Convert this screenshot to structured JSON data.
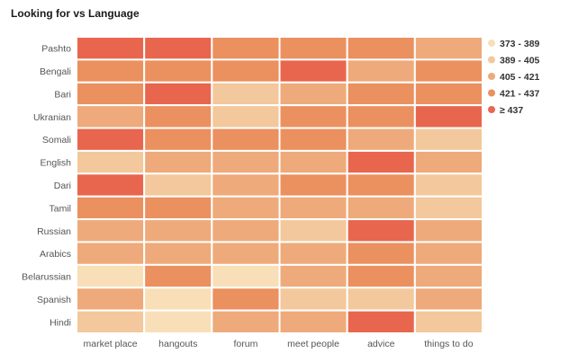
{
  "chart_data": {
    "type": "heatmap",
    "title": "Looking for vs Language",
    "x_categories": [
      "market place",
      "hangouts",
      "forum",
      "meet people",
      "advice",
      "things to do"
    ],
    "y_categories": [
      "Pashto",
      "Bengali",
      "Bari",
      "Ukranian",
      "Somali",
      "English",
      "Dari",
      "Tamil",
      "Russian",
      "Arabics",
      "Belarussian",
      "Spanish",
      "Hindi"
    ],
    "bins": [
      {
        "label": "373 - 389",
        "color": "#f8dfb8"
      },
      {
        "label": "389 - 405",
        "color": "#f3c89c"
      },
      {
        "label": "405 - 421",
        "color": "#eeaa7a"
      },
      {
        "label": "421 - 437",
        "color": "#eb905f"
      },
      {
        "label": "≥ 437",
        "color": "#e8664e"
      }
    ],
    "bin_index_matrix": [
      [
        4,
        4,
        3,
        3,
        3,
        2
      ],
      [
        3,
        3,
        3,
        4,
        2,
        3
      ],
      [
        3,
        4,
        1,
        2,
        3,
        3
      ],
      [
        2,
        3,
        1,
        3,
        3,
        4
      ],
      [
        4,
        3,
        3,
        3,
        2,
        1
      ],
      [
        1,
        2,
        2,
        2,
        4,
        2
      ],
      [
        4,
        1,
        2,
        3,
        3,
        1
      ],
      [
        3,
        3,
        2,
        2,
        2,
        1
      ],
      [
        2,
        2,
        2,
        1,
        4,
        2
      ],
      [
        2,
        2,
        2,
        2,
        3,
        2
      ],
      [
        0,
        3,
        0,
        2,
        3,
        2
      ],
      [
        2,
        0,
        3,
        1,
        1,
        2
      ],
      [
        1,
        0,
        2,
        2,
        4,
        1
      ]
    ]
  }
}
